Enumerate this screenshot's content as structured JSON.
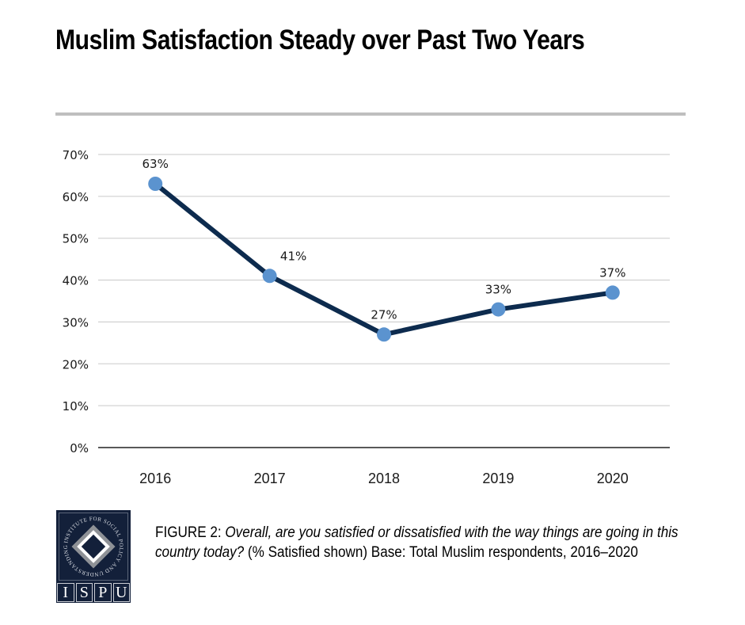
{
  "title": "Muslim Satisfaction Steady over Past Two Years",
  "chart_data": {
    "type": "line",
    "title": "Muslim Satisfaction Steady over Past Two Years",
    "xlabel": "",
    "ylabel": "",
    "categories": [
      "2016",
      "2017",
      "2018",
      "2019",
      "2020"
    ],
    "series": [
      {
        "name": "% Satisfied",
        "values": [
          63,
          41,
          27,
          33,
          37
        ],
        "labels": [
          "63%",
          "41%",
          "27%",
          "33%",
          "37%"
        ],
        "line_color": "#0d2b4e",
        "marker_color": "#5b93cf"
      }
    ],
    "ylim": [
      0,
      70
    ],
    "yticks": [
      0,
      10,
      20,
      30,
      40,
      50,
      60,
      70
    ],
    "ytick_labels": [
      "0%",
      "10%",
      "20%",
      "30%",
      "40%",
      "50%",
      "60%",
      "70%"
    ],
    "grid": true,
    "legend": "none"
  },
  "caption": {
    "figure_label": "FIGURE 2",
    "separator": ": ",
    "question": "Overall, are you satisfied or dissatisfied with the way things are going in this country today?",
    "note": " (% Satisfied shown) Base: Total Muslim respondents, 2016–2020"
  },
  "logo": {
    "ring_text": "INSTITUTE FOR SOCIAL POLICY AND UNDERSTANDING",
    "letters": [
      "I",
      "S",
      "P",
      "U"
    ]
  }
}
